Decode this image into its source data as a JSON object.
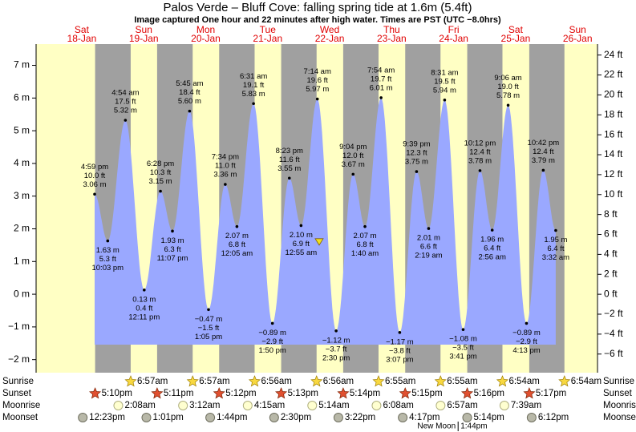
{
  "chart_data": {
    "type": "tide",
    "title": "Palos Verde – Bluff Cove: falling  spring tide at 1.6m (5.4ft)",
    "subtitle": "Image captured One hour and 22 minutes after high water. Times are PST (UTC −8.0hrs)",
    "ylim": [
      -2.4,
      7.65
    ],
    "yticks": [
      {
        "value": -2,
        "label": "−2 m"
      },
      {
        "value": -1,
        "label": "−1 m"
      },
      {
        "value": 0,
        "label": "0 m"
      },
      {
        "value": 1,
        "label": "1 m"
      },
      {
        "value": 2,
        "label": "2 m"
      },
      {
        "value": 3,
        "label": "3 m"
      },
      {
        "value": 4,
        "label": "4 m"
      },
      {
        "value": 5,
        "label": "5 m"
      },
      {
        "value": 6,
        "label": "6 m"
      },
      {
        "value": 7,
        "label": "7 m"
      }
    ],
    "y2lim": [
      -7.87,
      25.1
    ],
    "y2ticks": [
      {
        "value": -6,
        "label": "−6 ft"
      },
      {
        "value": -4,
        "label": "−4 ft"
      },
      {
        "value": -2,
        "label": "−2 ft"
      },
      {
        "value": 0,
        "label": "0 ft"
      },
      {
        "value": 2,
        "label": "2 ft"
      },
      {
        "value": 4,
        "label": "4 ft"
      },
      {
        "value": 6,
        "label": "6 ft"
      },
      {
        "value": 8,
        "label": "8 ft"
      },
      {
        "value": 10,
        "label": "10 ft"
      },
      {
        "value": 12,
        "label": "12 ft"
      },
      {
        "value": 14,
        "label": "14 ft"
      },
      {
        "value": 16,
        "label": "16 ft"
      },
      {
        "value": 18,
        "label": "18 ft"
      },
      {
        "value": 20,
        "label": "20 ft"
      },
      {
        "value": 22,
        "label": "22 ft"
      },
      {
        "value": 24,
        "label": "24 ft"
      }
    ],
    "current_m": 1.6,
    "curve_color": "#9aa8ff",
    "row_labels": {
      "sunrise": "Sunrise",
      "sunset": "Sunset",
      "moonrise": "Moonrise",
      "moonset": "Moonset"
    },
    "days": [
      {
        "name": "Sat",
        "date": "18-Jan",
        "sunset": "5:10pm",
        "moonset": "12:23pm",
        "tides": [
          {
            "time": "4:59 pm",
            "ft": "10.0 ft",
            "m": 3.06,
            "m_label": "3.06 m",
            "kind": "high"
          },
          {
            "time": "10:03 pm",
            "ft": "5.3 ft",
            "m": 1.63,
            "m_label": "1.63 m",
            "kind": "low"
          }
        ]
      },
      {
        "name": "Sun",
        "date": "19-Jan",
        "sunrise": "6:57am",
        "sunset": "5:11pm",
        "moonrise": "2:08am",
        "moonset": "1:01pm",
        "tides": [
          {
            "time": "4:54 am",
            "ft": "17.5 ft",
            "m": 5.32,
            "m_label": "5.32 m",
            "kind": "high"
          },
          {
            "time": "12:11 pm",
            "ft": "0.4 ft",
            "m": 0.13,
            "m_label": "0.13 m",
            "kind": "low"
          },
          {
            "time": "6:28 pm",
            "ft": "10.3 ft",
            "m": 3.15,
            "m_label": "3.15 m",
            "kind": "high"
          },
          {
            "time": "11:07 pm",
            "ft": "6.3 ft",
            "m": 1.93,
            "m_label": "1.93 m",
            "kind": "low"
          }
        ]
      },
      {
        "name": "Mon",
        "date": "20-Jan",
        "sunrise": "6:57am",
        "sunset": "5:12pm",
        "moonrise": "3:12am",
        "moonset": "1:44pm",
        "tides": [
          {
            "time": "5:45 am",
            "ft": "18.4 ft",
            "m": 5.6,
            "m_label": "5.60 m",
            "kind": "high"
          },
          {
            "time": "1:05 pm",
            "ft": "−1.5 ft",
            "m": -0.47,
            "m_label": "−0.47 m",
            "kind": "low"
          },
          {
            "time": "7:34 pm",
            "ft": "11.0 ft",
            "m": 3.36,
            "m_label": "3.36 m",
            "kind": "high"
          }
        ]
      },
      {
        "name": "Tue",
        "date": "21-Jan",
        "sunrise": "6:56am",
        "sunset": "5:13pm",
        "moonrise": "4:15am",
        "moonset": "2:30pm",
        "tides": [
          {
            "time": "12:05 am",
            "ft": "6.8 ft",
            "m": 2.07,
            "m_label": "2.07 m",
            "kind": "low"
          },
          {
            "time": "6:31 am",
            "ft": "19.1 ft",
            "m": 5.83,
            "m_label": "5.83 m",
            "kind": "high"
          },
          {
            "time": "1:50 pm",
            "ft": "−2.9 ft",
            "m": -0.89,
            "m_label": "−0.89 m",
            "kind": "low"
          },
          {
            "time": "8:23 pm",
            "ft": "11.6 ft",
            "m": 3.55,
            "m_label": "3.55 m",
            "kind": "high"
          }
        ]
      },
      {
        "name": "Wed",
        "date": "22-Jan",
        "sunrise": "6:56am",
        "sunset": "5:14pm",
        "moonrise": "5:14am",
        "moonset": "3:22pm",
        "tides": [
          {
            "time": "12:55 am",
            "ft": "6.9 ft",
            "m": 2.1,
            "m_label": "2.10 m",
            "kind": "low"
          },
          {
            "time": "7:14 am",
            "ft": "19.6 ft",
            "m": 5.97,
            "m_label": "5.97 m",
            "kind": "high"
          },
          {
            "time": "2:30 pm",
            "ft": "−3.7 ft",
            "m": -1.12,
            "m_label": "−1.12 m",
            "kind": "low"
          },
          {
            "time": "9:04 pm",
            "ft": "12.0 ft",
            "m": 3.67,
            "m_label": "3.67 m",
            "kind": "high"
          }
        ]
      },
      {
        "name": "Thu",
        "date": "23-Jan",
        "sunrise": "6:55am",
        "sunset": "5:15pm",
        "moonrise": "6:08am",
        "moonset": "4:17pm",
        "tides": [
          {
            "time": "1:40 am",
            "ft": "6.8 ft",
            "m": 2.07,
            "m_label": "2.07 m",
            "kind": "low"
          },
          {
            "time": "7:54 am",
            "ft": "19.7 ft",
            "m": 6.01,
            "m_label": "6.01 m",
            "kind": "high"
          },
          {
            "time": "3:07 pm",
            "ft": "−3.8 ft",
            "m": -1.17,
            "m_label": "−1.17 m",
            "kind": "low"
          },
          {
            "time": "9:39 pm",
            "ft": "12.3 ft",
            "m": 3.75,
            "m_label": "3.75 m",
            "kind": "high"
          }
        ]
      },
      {
        "name": "Fri",
        "date": "24-Jan",
        "sunrise": "6:55am",
        "sunset": "5:16pm",
        "moonrise": "6:57am",
        "moonset": "5:14pm",
        "moon_phase": "New Moon",
        "moon_phase_time": "1:44pm",
        "tides": [
          {
            "time": "2:19 am",
            "ft": "6.6 ft",
            "m": 2.01,
            "m_label": "2.01 m",
            "kind": "low"
          },
          {
            "time": "8:31 am",
            "ft": "19.5 ft",
            "m": 5.94,
            "m_label": "5.94 m",
            "kind": "high"
          },
          {
            "time": "3:41 pm",
            "ft": "−3.5 ft",
            "m": -1.08,
            "m_label": "−1.08 m",
            "kind": "low"
          },
          {
            "time": "10:12 pm",
            "ft": "12.4 ft",
            "m": 3.78,
            "m_label": "3.78 m",
            "kind": "high"
          }
        ]
      },
      {
        "name": "Sat",
        "date": "25-Jan",
        "sunrise": "6:54am",
        "sunset": "5:17pm",
        "moonrise": "7:39am",
        "moonset": "6:12pm",
        "tides": [
          {
            "time": "2:56 am",
            "ft": "6.4 ft",
            "m": 1.96,
            "m_label": "1.96 m",
            "kind": "low"
          },
          {
            "time": "9:06 am",
            "ft": "19.0 ft",
            "m": 5.78,
            "m_label": "5.78 m",
            "kind": "high"
          },
          {
            "time": "4:13 pm",
            "ft": "−2.9 ft",
            "m": -0.89,
            "m_label": "−0.89 m",
            "kind": "low"
          },
          {
            "time": "10:42 pm",
            "ft": "12.4 ft",
            "m": 3.79,
            "m_label": "3.79 m",
            "kind": "high"
          }
        ]
      },
      {
        "name": "Sun",
        "date": "26-Jan",
        "sunrise": "6:54am",
        "tides": [
          {
            "time": "3:32 am",
            "ft": "6.4 ft",
            "m": 1.95,
            "m_label": "1.95 m",
            "kind": "low"
          }
        ]
      }
    ]
  }
}
